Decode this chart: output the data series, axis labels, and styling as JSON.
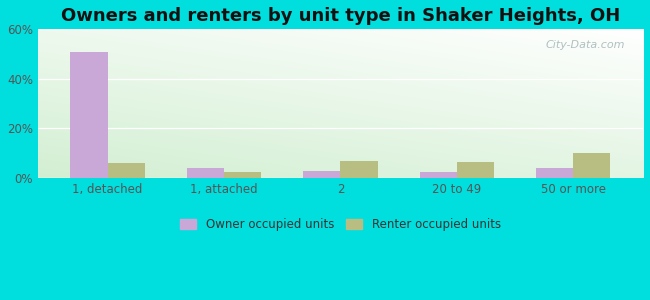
{
  "title": "Owners and renters by unit type in Shaker Heights, OH",
  "categories": [
    "1, detached",
    "1, attached",
    "2",
    "20 to 49",
    "50 or more"
  ],
  "owner_values": [
    51,
    4,
    3,
    2.5,
    4
  ],
  "renter_values": [
    6,
    2.5,
    7,
    6.5,
    10
  ],
  "owner_color": "#c9a8d8",
  "renter_color": "#b8be82",
  "ylim": [
    0,
    60
  ],
  "yticks": [
    0,
    20,
    40,
    60
  ],
  "ytick_labels": [
    "0%",
    "20%",
    "40%",
    "60%"
  ],
  "outer_color": "#00dede",
  "title_fontsize": 13,
  "watermark": "City-Data.com",
  "bar_width": 0.32,
  "legend_owner": "Owner occupied units",
  "legend_renter": "Renter occupied units"
}
